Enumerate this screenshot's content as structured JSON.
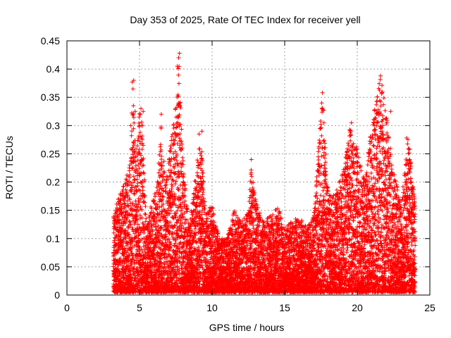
{
  "chart_data": {
    "type": "scatter",
    "title": "Day 353 of 2025, Rate Of TEC Index for receiver yell",
    "xlabel": "GPS time / hours",
    "ylabel": "ROTI / TECUs",
    "xlim": [
      0,
      25
    ],
    "ylim": [
      0,
      0.45
    ],
    "x_ticks": [
      0,
      5,
      10,
      15,
      20,
      25
    ],
    "x_tick_labels": [
      "0",
      "5",
      "10",
      "15",
      "20",
      "25"
    ],
    "y_ticks": [
      0,
      0.05,
      0.1,
      0.15,
      0.2,
      0.25,
      0.3,
      0.35,
      0.4,
      0.45
    ],
    "y_tick_labels": [
      "0",
      "0.05",
      "0.1",
      "0.15",
      "0.2",
      "0.25",
      "0.3",
      "0.35",
      "0.4",
      "0.45"
    ],
    "grid": true,
    "marker": "+",
    "color": "#ff0000",
    "series": [
      {
        "name": "ROTI",
        "x_range": [
          3.2,
          24.0
        ],
        "envelope": [
          [
            3.2,
            0.14
          ],
          [
            3.6,
            0.18
          ],
          [
            4.0,
            0.2
          ],
          [
            4.4,
            0.25
          ],
          [
            4.5,
            0.38
          ],
          [
            4.8,
            0.25
          ],
          [
            5.0,
            0.33
          ],
          [
            5.2,
            0.3
          ],
          [
            5.5,
            0.12
          ],
          [
            5.8,
            0.16
          ],
          [
            6.2,
            0.2
          ],
          [
            6.5,
            0.32
          ],
          [
            6.8,
            0.2
          ],
          [
            7.1,
            0.26
          ],
          [
            7.5,
            0.34
          ],
          [
            7.7,
            0.43
          ],
          [
            8.0,
            0.24
          ],
          [
            8.4,
            0.12
          ],
          [
            8.8,
            0.2
          ],
          [
            9.2,
            0.29
          ],
          [
            9.6,
            0.15
          ],
          [
            10.0,
            0.16
          ],
          [
            10.5,
            0.1
          ],
          [
            11.0,
            0.1
          ],
          [
            11.5,
            0.15
          ],
          [
            12.0,
            0.13
          ],
          [
            12.5,
            0.15
          ],
          [
            12.7,
            0.24
          ],
          [
            13.0,
            0.17
          ],
          [
            13.5,
            0.13
          ],
          [
            14.0,
            0.14
          ],
          [
            14.5,
            0.16
          ],
          [
            15.0,
            0.12
          ],
          [
            15.5,
            0.13
          ],
          [
            16.0,
            0.14
          ],
          [
            16.5,
            0.12
          ],
          [
            17.0,
            0.14
          ],
          [
            17.6,
            0.36
          ],
          [
            18.0,
            0.18
          ],
          [
            18.5,
            0.18
          ],
          [
            19.0,
            0.22
          ],
          [
            19.5,
            0.3
          ],
          [
            20.0,
            0.26
          ],
          [
            20.5,
            0.21
          ],
          [
            21.0,
            0.3
          ],
          [
            21.6,
            0.39
          ],
          [
            22.0,
            0.32
          ],
          [
            22.5,
            0.22
          ],
          [
            23.0,
            0.16
          ],
          [
            23.5,
            0.28
          ],
          [
            24.0,
            0.16
          ]
        ],
        "spikes": [
          [
            4.6,
            0.38
          ],
          [
            4.55,
            0.365
          ],
          [
            4.7,
            0.325
          ],
          [
            5.1,
            0.33
          ],
          [
            5.25,
            0.325
          ],
          [
            6.5,
            0.32
          ],
          [
            7.6,
            0.405
          ],
          [
            7.75,
            0.428
          ],
          [
            7.7,
            0.34
          ],
          [
            9.3,
            0.29
          ],
          [
            9.1,
            0.285
          ],
          [
            12.7,
            0.24
          ],
          [
            17.6,
            0.358
          ],
          [
            17.55,
            0.34
          ],
          [
            17.7,
            0.305
          ],
          [
            19.6,
            0.305
          ],
          [
            21.6,
            0.388
          ],
          [
            22.3,
            0.325
          ],
          [
            21.2,
            0.3
          ],
          [
            23.4,
            0.278
          ],
          [
            5.0,
            0.3
          ],
          [
            7.5,
            0.28
          ],
          [
            4.4,
            0.3
          ]
        ]
      }
    ]
  }
}
